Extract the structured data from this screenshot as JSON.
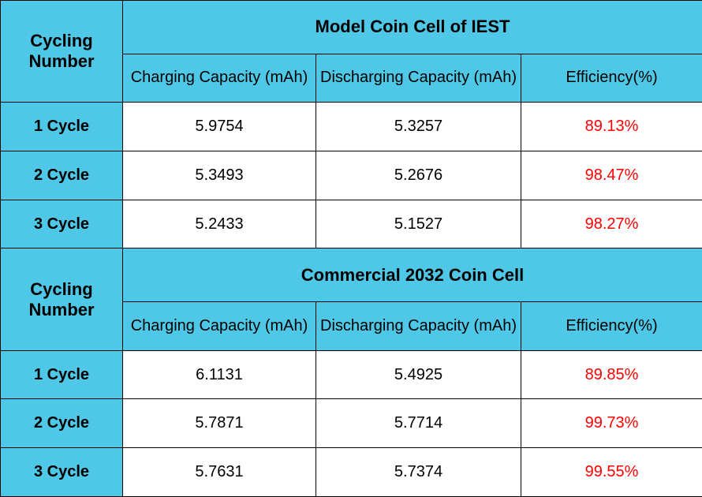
{
  "colors": {
    "header_bg": "#4ec8e6",
    "data_bg": "#ffffff",
    "text": "#000000",
    "efficiency_text": "#ff0000",
    "border": "#000000"
  },
  "sections": [
    {
      "cycling_label": "Cycling Number",
      "section_title": "Model Coin Cell of IEST",
      "columns": {
        "charging": "Charging Capacity (mAh)",
        "discharging": "Discharging Capacity (mAh)",
        "efficiency": "Efficiency(%)"
      },
      "rows": [
        {
          "label": "1 Cycle",
          "charging": "5.9754",
          "discharging": "5.3257",
          "efficiency": "89.13%"
        },
        {
          "label": "2 Cycle",
          "charging": "5.3493",
          "discharging": "5.2676",
          "efficiency": "98.47%"
        },
        {
          "label": "3 Cycle",
          "charging": "5.2433",
          "discharging": "5.1527",
          "efficiency": "98.27%"
        }
      ]
    },
    {
      "cycling_label": "Cycling Number",
      "section_title": "Commercial 2032 Coin Cell",
      "columns": {
        "charging": "Charging Capacity (mAh)",
        "discharging": "Discharging Capacity (mAh)",
        "efficiency": "Efficiency(%)"
      },
      "rows": [
        {
          "label": "1 Cycle",
          "charging": "6.1131",
          "discharging": "5.4925",
          "efficiency": "89.85%"
        },
        {
          "label": "2 Cycle",
          "charging": "5.7871",
          "discharging": "5.7714",
          "efficiency": "99.73%"
        },
        {
          "label": "3 Cycle",
          "charging": "5.7631",
          "discharging": "5.7374",
          "efficiency": "99.55%"
        }
      ]
    }
  ]
}
